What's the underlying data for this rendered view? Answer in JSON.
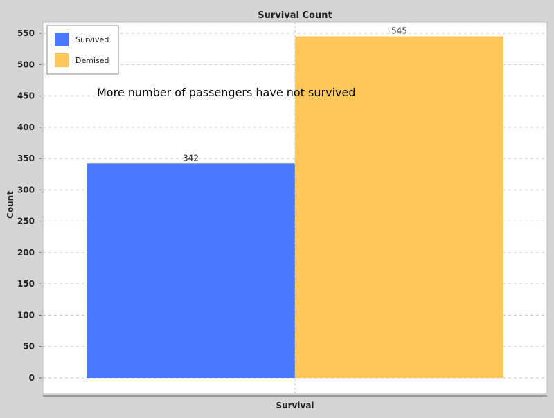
{
  "chart_data": {
    "type": "bar",
    "title": "Survival Count",
    "xlabel": "Survival",
    "ylabel": "Count",
    "categories": [
      ""
    ],
    "series": [
      {
        "name": "Survived",
        "values": [
          342
        ],
        "color": "#4c78ff"
      },
      {
        "name": "Demised",
        "values": [
          545
        ],
        "color": "#ffc65a"
      }
    ],
    "data_labels": [
      "342",
      "545"
    ],
    "ylim": [
      0,
      550
    ],
    "yticks": [
      0,
      50,
      100,
      150,
      200,
      250,
      300,
      350,
      400,
      450,
      500,
      550
    ],
    "grid": true,
    "legend_position": "top-left",
    "annotation": "More number of passengers have not survived"
  },
  "colors": {
    "background": "#d5d5d5",
    "plot_background": "#ffffff",
    "gridline": "#c8c8c8",
    "axis": "#888888",
    "text": "#222222"
  }
}
